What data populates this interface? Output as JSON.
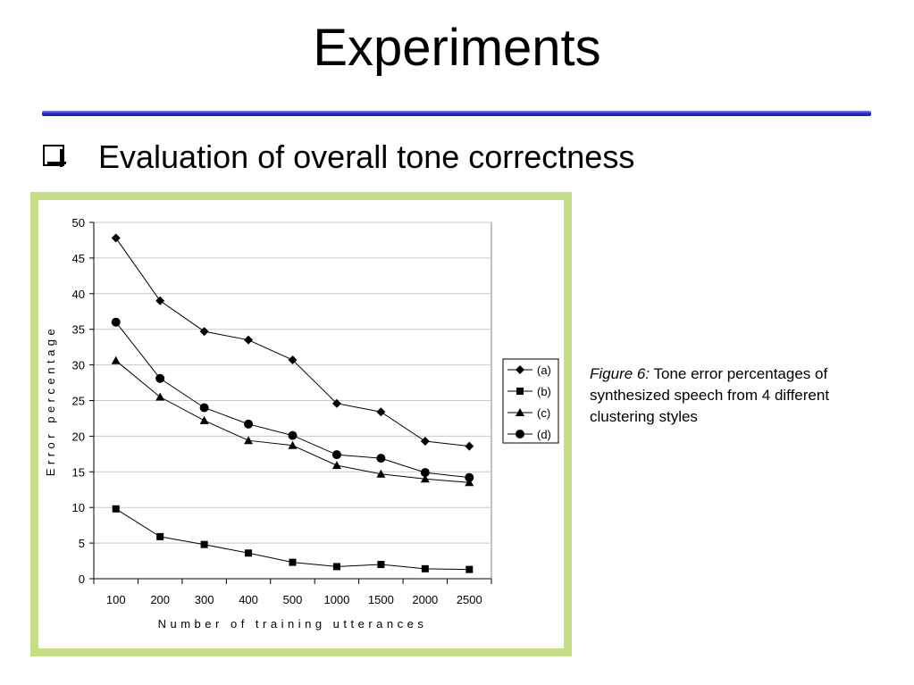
{
  "slide": {
    "title": "Experiments",
    "bullet": "Evaluation of overall tone correctness",
    "caption_lead": "Figure 6:",
    "caption_text": " Tone error percentages of synthesized speech from 4 different clustering styles"
  },
  "colors": {
    "rule": "#2b2bd6",
    "frame": "#c6df86",
    "grid": "#c8c8c8",
    "series": "#000000"
  },
  "chart_data": {
    "type": "line",
    "xlabel": "Number of training utterances",
    "ylabel": "Error percentage",
    "categories": [
      "100",
      "200",
      "300",
      "400",
      "500",
      "1000",
      "1500",
      "2000",
      "2500"
    ],
    "ylim": [
      0,
      50
    ],
    "yticks": [
      0,
      5,
      10,
      15,
      20,
      25,
      30,
      35,
      40,
      45,
      50
    ],
    "grid": "horizontal",
    "legend_position": "right",
    "series": [
      {
        "name": "(a)",
        "marker": "diamond",
        "values": [
          47.8,
          39.0,
          34.7,
          33.5,
          30.7,
          24.6,
          23.4,
          19.3,
          18.6
        ]
      },
      {
        "name": "(b)",
        "marker": "square",
        "values": [
          9.8,
          5.9,
          4.8,
          3.6,
          2.3,
          1.7,
          2.0,
          1.4,
          1.3
        ]
      },
      {
        "name": "(c)",
        "marker": "triangle",
        "values": [
          30.6,
          25.5,
          22.2,
          19.4,
          18.7,
          15.9,
          14.7,
          14.0,
          13.5
        ]
      },
      {
        "name": "(d)",
        "marker": "circle",
        "values": [
          36.0,
          28.1,
          24.0,
          21.7,
          20.1,
          17.4,
          16.9,
          14.9,
          14.2
        ]
      }
    ]
  }
}
